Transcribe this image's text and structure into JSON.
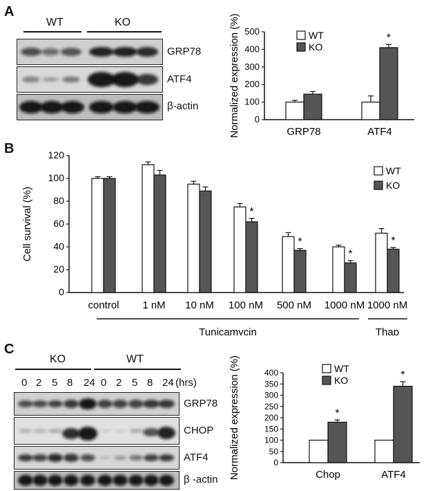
{
  "panelA": {
    "letter": "A",
    "groups": [
      "WT",
      "KO"
    ],
    "blots": [
      "GRP78",
      "ATF4",
      "β-actin"
    ]
  },
  "panelB": {
    "letter": "B"
  },
  "panelC": {
    "letter": "C",
    "groups": [
      "KO",
      "WT"
    ],
    "timepoints": [
      "0",
      "2",
      "5",
      "8",
      "24",
      "0",
      "2",
      "5",
      "8",
      "24"
    ],
    "time_unit": "(hrs)",
    "blots": [
      "GRP78",
      "CHOP",
      "ATF4",
      "β -actin"
    ]
  },
  "chart_data": [
    {
      "id": "A",
      "type": "bar",
      "ylabel": "Normalized  expression (%)",
      "ylim": [
        0,
        500
      ],
      "yticks": [
        0,
        100,
        200,
        300,
        400,
        500
      ],
      "categories": [
        "GRP78",
        "ATF4"
      ],
      "series": [
        {
          "name": "WT",
          "values": [
            100,
            100
          ],
          "errors": [
            10,
            35
          ],
          "color": "#ffffff"
        },
        {
          "name": "KO",
          "values": [
            145,
            410
          ],
          "errors": [
            15,
            18
          ],
          "color": "#555555"
        }
      ],
      "significance": [
        {
          "category": "ATF4",
          "label": "*"
        }
      ],
      "legend": "top-left"
    },
    {
      "id": "B",
      "type": "bar",
      "ylabel": "Cell survival (%)",
      "ylim": [
        0,
        120
      ],
      "yticks": [
        0,
        20,
        40,
        60,
        80,
        100,
        120
      ],
      "categories": [
        "control",
        "1 nM",
        "10 nM",
        "100 nM",
        "500 nM",
        "1000 nM",
        "1000 nM"
      ],
      "series": [
        {
          "name": "WT",
          "values": [
            100,
            112,
            95,
            75,
            49,
            40,
            52
          ],
          "errors": [
            1.5,
            2.5,
            2.5,
            3,
            3.5,
            1.5,
            4
          ],
          "color": "#ffffff"
        },
        {
          "name": "KO",
          "values": [
            100,
            103,
            89,
            62,
            37,
            26,
            38
          ],
          "errors": [
            1.5,
            4,
            3.5,
            3,
            1.5,
            2,
            1.5
          ],
          "color": "#555555"
        }
      ],
      "significance": [
        {
          "category": "100 nM",
          "label": "*"
        },
        {
          "category": "500 nM",
          "label": "*"
        },
        {
          "category": "1000 nM",
          "label": "*"
        },
        {
          "category": "1000 nM (Thap)",
          "label": "*"
        }
      ],
      "group_labels": [
        "Tunicamycin",
        "Thap"
      ],
      "legend": "top-right"
    },
    {
      "id": "C",
      "type": "bar",
      "ylabel": "Normalized  expression (%)",
      "ylim": [
        0,
        400
      ],
      "yticks": [
        0,
        50,
        100,
        150,
        200,
        250,
        300,
        350,
        400
      ],
      "categories": [
        "Chop",
        "ATF4"
      ],
      "series": [
        {
          "name": "WT",
          "values": [
            100,
            100
          ],
          "errors": [
            0,
            0
          ],
          "color": "#ffffff"
        },
        {
          "name": "KO",
          "values": [
            180,
            340
          ],
          "errors": [
            10,
            20
          ],
          "color": "#555555"
        }
      ],
      "significance": [
        {
          "category": "Chop",
          "label": "*"
        },
        {
          "category": "ATF4",
          "label": "*"
        }
      ],
      "legend": "top-left"
    }
  ]
}
